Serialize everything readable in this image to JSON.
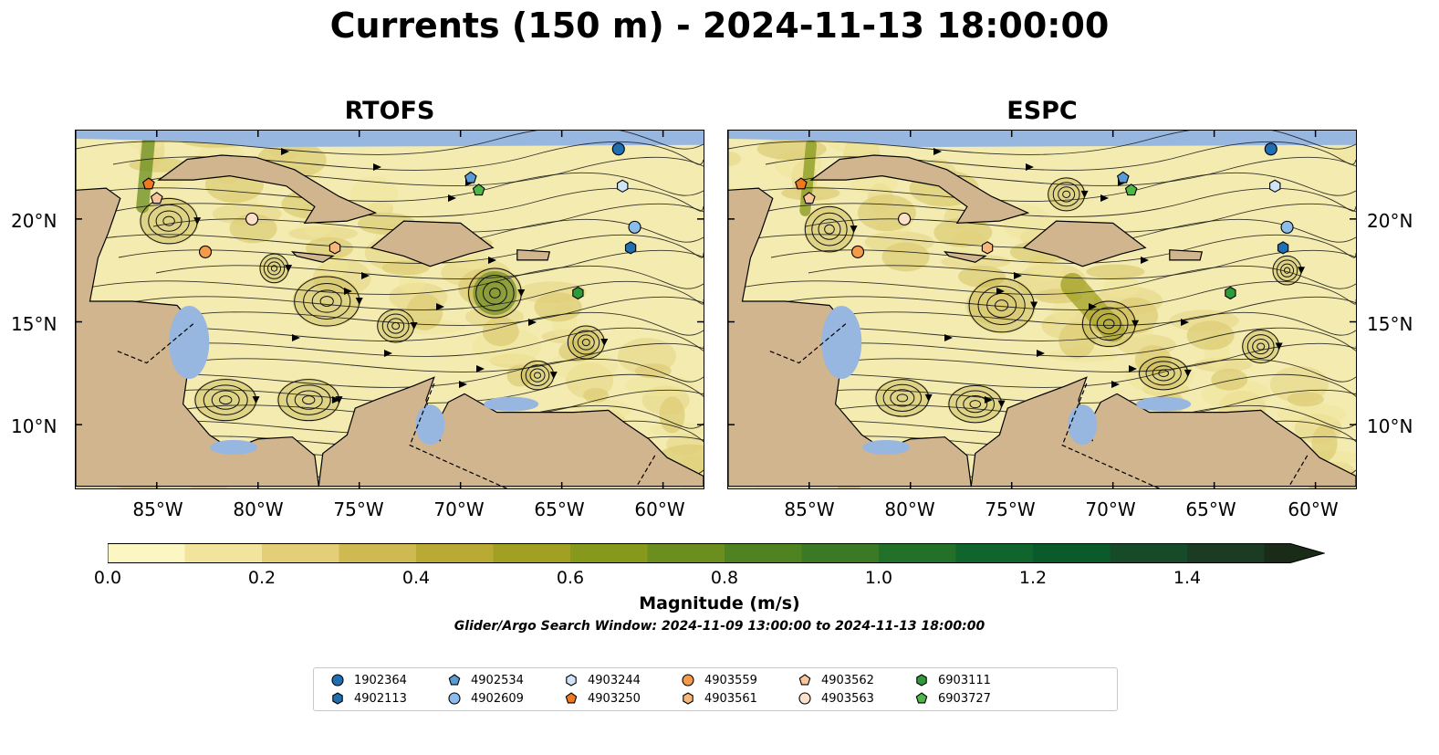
{
  "title": "Currents (150 m) - 2024-11-13 18:00:00",
  "panels": [
    {
      "title": "RTOFS"
    },
    {
      "title": "ESPC"
    }
  ],
  "x_ticks": [
    "85°W",
    "80°W",
    "75°W",
    "70°W",
    "65°W",
    "60°W"
  ],
  "y_ticks": [
    "20°N",
    "15°N",
    "10°N"
  ],
  "colorbar": {
    "label": "Magnitude (m/s)",
    "ticks": [
      "0.0",
      "0.2",
      "0.4",
      "0.6",
      "0.8",
      "1.0",
      "1.2",
      "1.4"
    ],
    "colors": [
      "#fcf6c2",
      "#f2e49c",
      "#e3cf77",
      "#cfba52",
      "#b9aa36",
      "#a1a023",
      "#87991c",
      "#6b8e1e",
      "#4f8221",
      "#3a7a26",
      "#237029",
      "#10652d",
      "#0b5a2b",
      "#174a29",
      "#1b3c23",
      "#1a2c18"
    ]
  },
  "search_window": "Glider/Argo Search Window: 2024-11-09 13:00:00 to 2024-11-13 18:00:00",
  "legend": [
    {
      "id": "1902364",
      "shape": "circle",
      "color": "#1f6fb2"
    },
    {
      "id": "4902113",
      "shape": "hexagon",
      "color": "#1f6fb2"
    },
    {
      "id": "4902534",
      "shape": "pentagon",
      "color": "#5a9bd4"
    },
    {
      "id": "4902609",
      "shape": "circle",
      "color": "#8cbcea"
    },
    {
      "id": "4903244",
      "shape": "hexagon",
      "color": "#cfe5f7"
    },
    {
      "id": "4903250",
      "shape": "pentagon",
      "color": "#f0781e"
    },
    {
      "id": "4903559",
      "shape": "circle",
      "color": "#f59a4a"
    },
    {
      "id": "4903561",
      "shape": "hexagon",
      "color": "#f7b67b"
    },
    {
      "id": "4903562",
      "shape": "pentagon",
      "color": "#f9c69b"
    },
    {
      "id": "4903563",
      "shape": "circle",
      "color": "#fde0c8"
    },
    {
      "id": "6903111",
      "shape": "hexagon",
      "color": "#2e9a3a"
    },
    {
      "id": "6903727",
      "shape": "pentagon",
      "color": "#4fb648"
    }
  ],
  "colors": {
    "land": "#d1b58e",
    "water": "#97b6e0",
    "low_speed": "#f3ebb0"
  }
}
